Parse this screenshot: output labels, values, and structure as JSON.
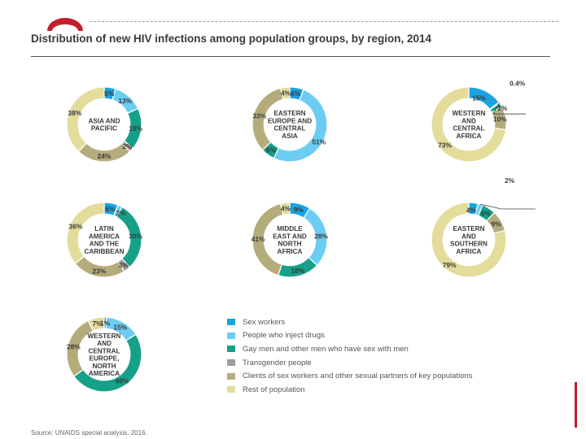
{
  "title": "Distribution of new HIV infections among population groups, by region, 2014",
  "source": "Source: UNAIDS special analysis, 2016.",
  "colors": {
    "sex_workers": "#1aa3e0",
    "pwid": "#6ccdf3",
    "msm": "#16a08a",
    "transgender": "#9e9aa0",
    "clients": "#b5ac7c",
    "rest": "#e4dc9b"
  },
  "legend": [
    {
      "key": "sex_workers",
      "label": "Sex workers"
    },
    {
      "key": "pwid",
      "label": "People who inject drugs"
    },
    {
      "key": "msm",
      "label": "Gay men and other men who have sex with men"
    },
    {
      "key": "transgender",
      "label": "Transgender people"
    },
    {
      "key": "clients",
      "label": "Clients of sex workers and other sexual partners of key populations"
    },
    {
      "key": "rest",
      "label": "Rest of population"
    }
  ],
  "chart_data": [
    {
      "type": "pie",
      "title": "ASIA AND PACIFIC",
      "categories": [
        "Sex workers",
        "People who inject drugs",
        "Gay men and other men who have sex with men",
        "Transgender people",
        "Clients of sex workers and other sexual partners of key populations",
        "Rest of population"
      ],
      "values": [
        5,
        13,
        18,
        2,
        24,
        38
      ],
      "labels": [
        "5%",
        "13%",
        "18%",
        "2%",
        "24%",
        "38%"
      ]
    },
    {
      "type": "pie",
      "title": "EASTERN EUROPE AND CENTRAL ASIA",
      "categories": [
        "Sex workers",
        "People who inject drugs",
        "Gay men and other men who have sex with men",
        "Transgender people",
        "Clients of sex workers and other sexual partners of key populations",
        "Rest of population"
      ],
      "values": [
        6,
        51,
        6,
        0,
        33,
        4
      ],
      "labels": [
        "6%",
        "51%",
        "6%",
        "",
        "33%",
        "4%"
      ]
    },
    {
      "type": "pie",
      "title": "WESTERN AND CENTRAL AFRICA",
      "categories": [
        "Sex workers",
        "People who inject drugs",
        "Gay men and other men who have sex with men",
        "Transgender people",
        "Clients of sex workers and other sexual partners of key populations",
        "Rest of population"
      ],
      "values": [
        15,
        0.4,
        2,
        0,
        10,
        73
      ],
      "labels": [
        "15%",
        "0.4%",
        "2%",
        "",
        "10%",
        "73%"
      ]
    },
    {
      "type": "pie",
      "title": "LATIN AMERICA AND THE CARIBBEAN",
      "categories": [
        "Sex workers",
        "People who inject drugs",
        "Gay men and other men who have sex with men",
        "Transgender people",
        "Clients of sex workers and other sexual partners of key populations",
        "Rest of population"
      ],
      "values": [
        6,
        2,
        30,
        3,
        23,
        36
      ],
      "labels": [
        "6%",
        "2%",
        "30%",
        "3%",
        "23%",
        "36%"
      ]
    },
    {
      "type": "pie",
      "title": "MIDDLE EAST AND NORTH AFRICA",
      "categories": [
        "Sex workers",
        "People who inject drugs",
        "Gay men and other men who have sex with men",
        "Transgender people",
        "Clients of sex workers and other sexual partners of key populations",
        "Rest of population"
      ],
      "values": [
        9,
        28,
        18,
        0,
        41,
        4
      ],
      "labels": [
        "9%",
        "28%",
        "18%",
        "",
        "41%",
        "4%"
      ]
    },
    {
      "type": "pie",
      "title": "EASTERN AND SOUTHERN AFRICA",
      "categories": [
        "Sex workers",
        "People who inject drugs",
        "Gay men and other men who have sex with men",
        "Transgender people",
        "Clients of sex workers and other sexual partners of key populations",
        "Rest of population"
      ],
      "values": [
        4,
        2,
        6,
        0,
        9,
        79
      ],
      "labels": [
        "4%",
        "2%",
        "6%",
        "",
        "9%",
        "79%"
      ]
    },
    {
      "type": "pie",
      "title": "WESTERN AND CENTRAL EUROPE, NORTH AMERICA",
      "categories": [
        "Sex workers",
        "People who inject drugs",
        "Gay men and other men who have sex with men",
        "Transgender people",
        "Clients of sex workers and other sexual partners of key populations",
        "Rest of population"
      ],
      "values": [
        1,
        15,
        49,
        0,
        28,
        7
      ],
      "labels": [
        "1%",
        "15%",
        "49%",
        "",
        "28%",
        "7%"
      ]
    }
  ]
}
